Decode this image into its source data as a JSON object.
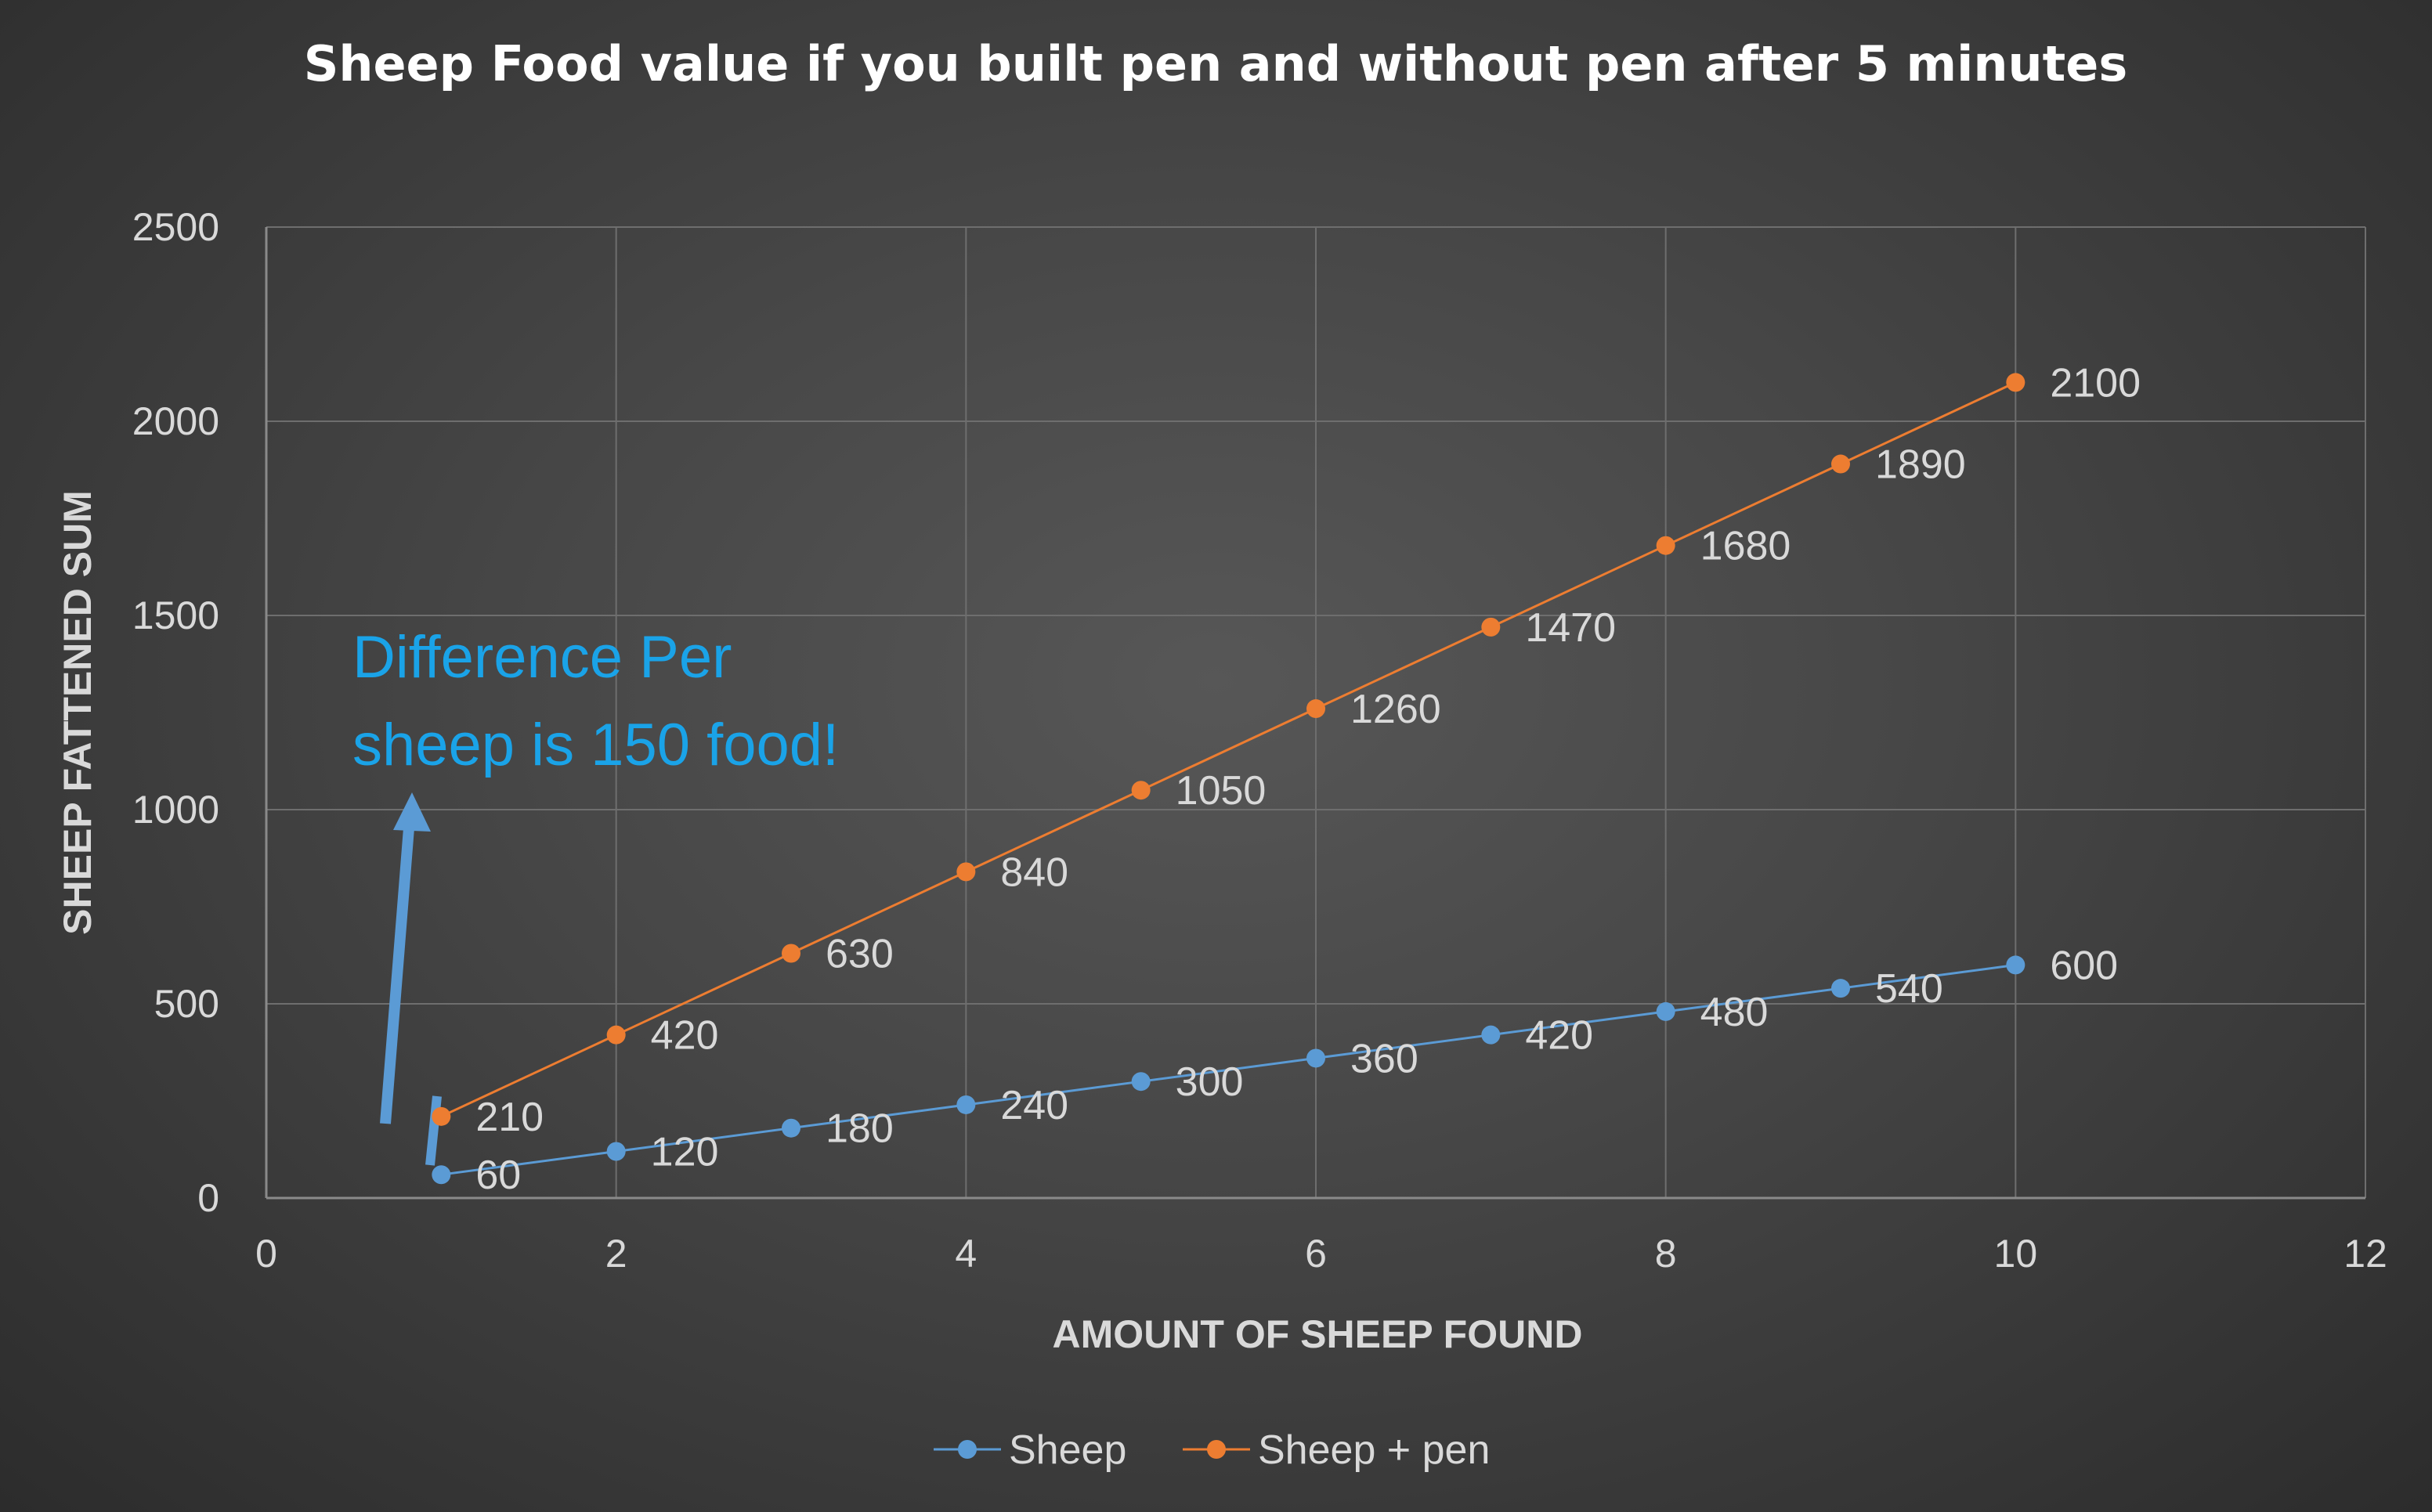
{
  "chart_data": {
    "type": "scatter",
    "title": "Sheep Food value if you built pen and without pen after 5 minutes",
    "xlabel": "AMOUNT OF SHEEP FOUND",
    "ylabel": "SHEEP FATTENED SUM",
    "xlim": [
      0,
      12
    ],
    "ylim": [
      0,
      2500
    ],
    "xticks": [
      0,
      2,
      4,
      6,
      8,
      10,
      12
    ],
    "yticks": [
      0,
      500,
      1000,
      1500,
      2000,
      2500
    ],
    "grid": true,
    "legend_position": "bottom",
    "x": [
      1,
      2,
      3,
      4,
      5,
      6,
      7,
      8,
      9,
      10
    ],
    "series": [
      {
        "name": "Sheep",
        "color": "#5b9bd5",
        "values": [
          60,
          120,
          180,
          240,
          300,
          360,
          420,
          480,
          540,
          600
        ]
      },
      {
        "name": "Sheep + pen",
        "color": "#ed7d31",
        "values": [
          210,
          420,
          630,
          840,
          1050,
          1260,
          1470,
          1680,
          1890,
          2100
        ]
      }
    ],
    "annotation": {
      "lines": [
        "Difference Per",
        "sheep is 150 food!"
      ],
      "color": "#1aa3e8",
      "arrow_color": "#5b9bd5"
    }
  }
}
